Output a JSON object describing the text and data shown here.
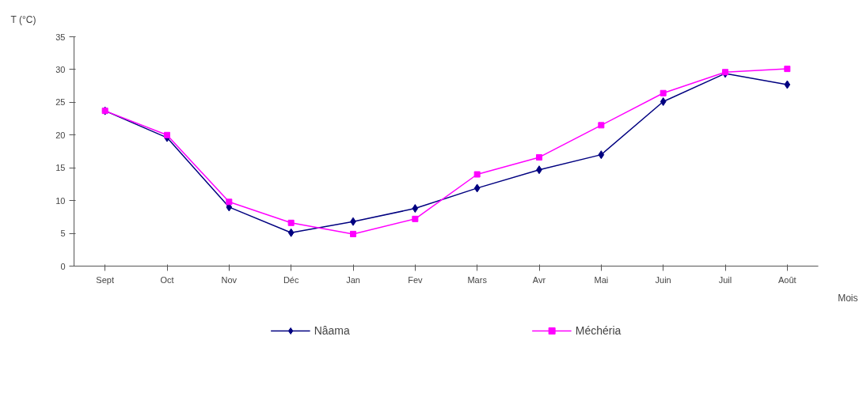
{
  "chart_data": {
    "type": "line",
    "xlabel": "Mois",
    "ylabel": "T (°C)",
    "categories": [
      "Sept",
      "Oct",
      "Nov",
      "Déc",
      "Jan",
      "Fev",
      "Mars",
      "Avr",
      "Mai",
      "Juin",
      "Juil",
      "Août"
    ],
    "series": [
      {
        "name": "Nâama",
        "color": "#000080",
        "marker": "diamond",
        "values": [
          23.7,
          19.6,
          9.0,
          5.1,
          6.8,
          8.8,
          11.9,
          14.7,
          17.0,
          25.1,
          29.4,
          27.7
        ]
      },
      {
        "name": "Méchéria",
        "color": "#ff00ff",
        "marker": "square",
        "values": [
          23.7,
          20.0,
          9.8,
          6.6,
          4.9,
          7.2,
          14.0,
          16.6,
          21.5,
          26.4,
          29.6,
          30.1
        ]
      }
    ],
    "ylim": [
      0,
      35
    ],
    "yticks": [
      0,
      5,
      10,
      15,
      20,
      25,
      30,
      35
    ],
    "grid": false,
    "legend": "bottom",
    "line_style": "solid"
  }
}
